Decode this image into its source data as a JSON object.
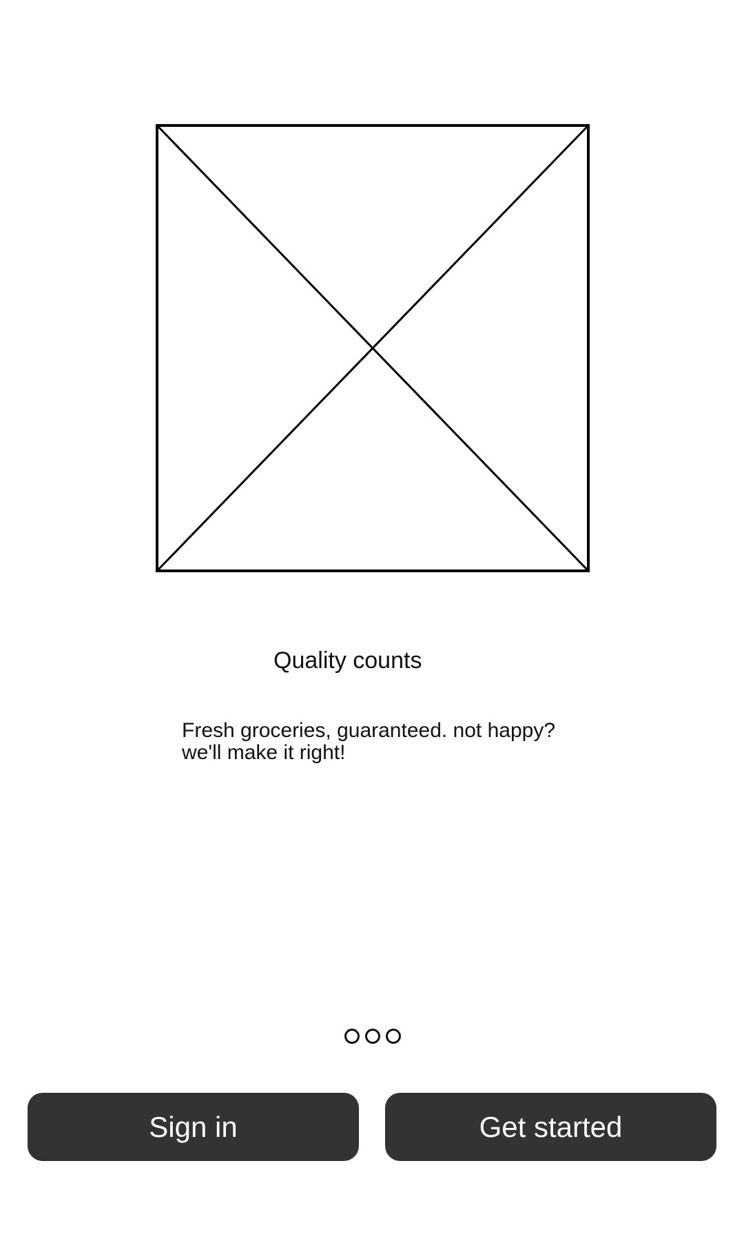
{
  "onboarding": {
    "image_icon": "placeholder-image-icon",
    "title": "Quality counts",
    "body_line_1": "Fresh groceries, guaranteed. not happy?",
    "body_line_2": "we'll make it right!",
    "page_count": 3
  },
  "actions": {
    "sign_in_label": "Sign in",
    "get_started_label": "Get started"
  },
  "colors": {
    "button_background": "#333333",
    "button_text": "#ffffff",
    "text": "#111111",
    "background": "#ffffff"
  }
}
